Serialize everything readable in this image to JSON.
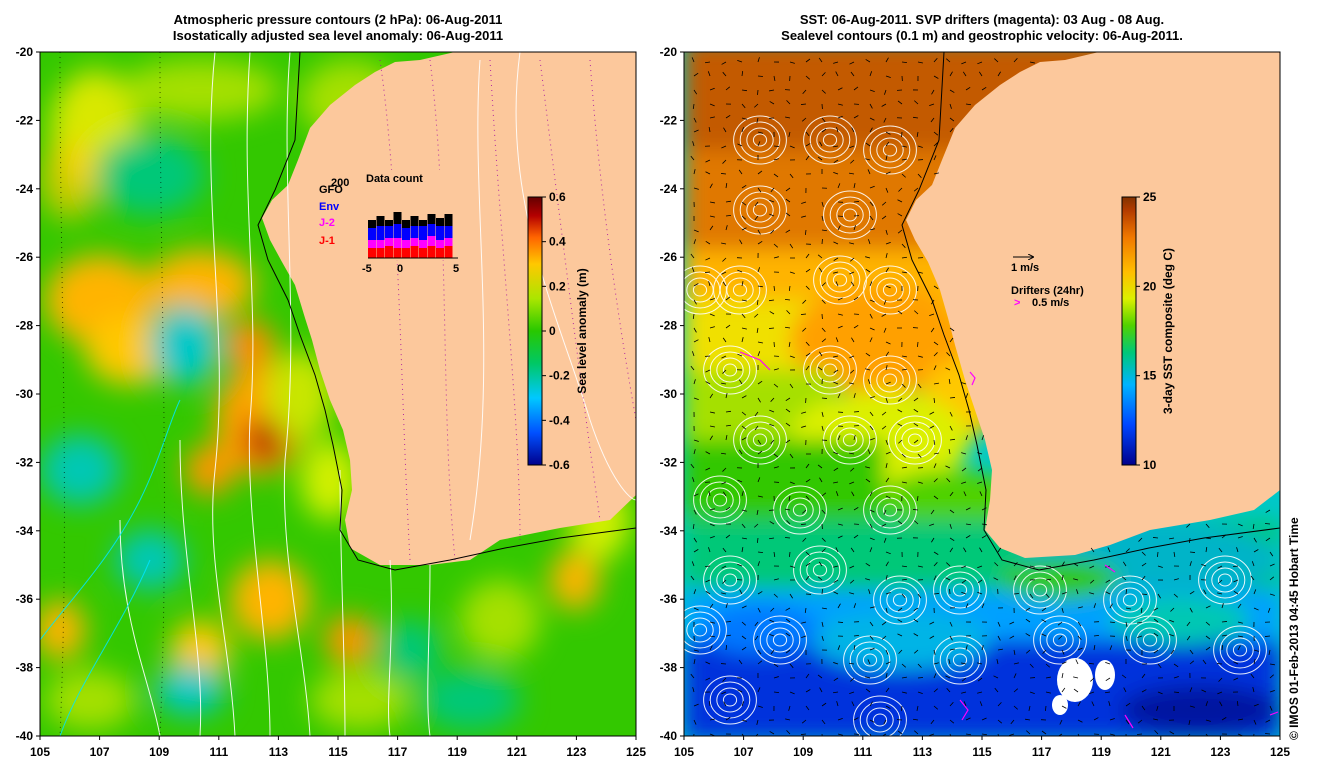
{
  "left_panel": {
    "title_line1": "Atmospheric pressure contours (2 hPa): 06-Aug-2011",
    "title_line2": "Isostatically adjusted sea level anomaly: 06-Aug-2011",
    "colorbar_label": "Sea level anomaly (m)",
    "colorbar_ticks": [
      "0.6",
      "0.4",
      "0.2",
      "0",
      "-0.2",
      "-0.4",
      "-0.6"
    ],
    "inset": {
      "title": "Data count",
      "series_labels": [
        {
          "text": "GFO",
          "color": "#000000"
        },
        {
          "text": "Env",
          "color": "#0000ff"
        },
        {
          "text": "J-2",
          "color": "#ff00ff"
        },
        {
          "text": "J-1",
          "color": "#ff0000"
        }
      ],
      "x_ticks": [
        "-5",
        "0",
        "5"
      ],
      "overlay_tag": "200"
    }
  },
  "right_panel": {
    "title_line1": "SST: 06-Aug-2011. SVP drifters (magenta): 03 Aug - 08 Aug.",
    "title_line2": "Sealevel contours (0.1 m) and geostrophic velocity: 06-Aug-2011.",
    "colorbar_label": "3-day SST composite (deg C)",
    "colorbar_ticks": [
      "25",
      "20",
      "15",
      "10"
    ],
    "velocity_legend": "1 m/s",
    "drifters_legend_title": "Drifters (24hr)",
    "drifters_legend_speed": "0.5 m/s",
    "drifter_marker": ">"
  },
  "axes": {
    "lat_ticks": [
      "-20",
      "-22",
      "-24",
      "-26",
      "-28",
      "-30",
      "-32",
      "-34",
      "-36",
      "-38",
      "-40"
    ],
    "lon_ticks": [
      "105",
      "107",
      "109",
      "111",
      "113",
      "115",
      "117",
      "119",
      "121",
      "123",
      "125"
    ]
  },
  "credit": "© IMOS 01-Feb-2013 04:45 Hobart Time",
  "colors": {
    "land": "#fcc89c",
    "sla_scale": [
      "#00008c",
      "#0050ff",
      "#00c8ff",
      "#00c864",
      "#28c800",
      "#aae600",
      "#ffc800",
      "#ff6400",
      "#b40000",
      "#640000"
    ],
    "sst_scale": [
      "#00008c",
      "#0046ff",
      "#00b4ff",
      "#00c878",
      "#50d200",
      "#dcf000",
      "#ffbe00",
      "#f07800",
      "#b43c00",
      "#823200"
    ],
    "drifter": "#ff00ff"
  }
}
